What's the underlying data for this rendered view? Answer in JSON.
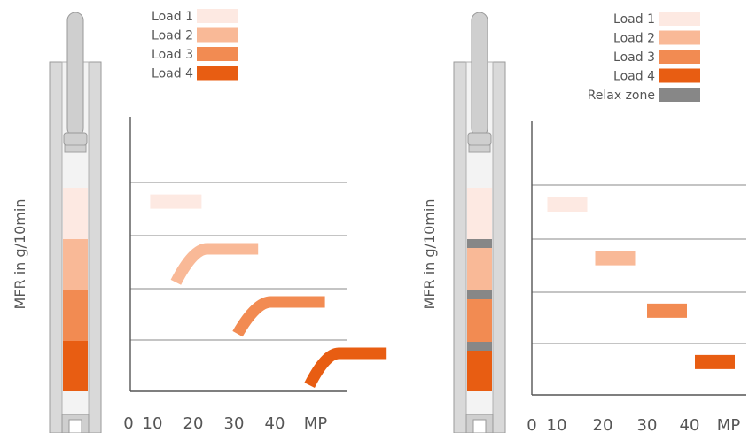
{
  "colors": {
    "load_1": "#fde9e2",
    "load_2": "#f9b997",
    "load_3": "#f28b52",
    "load_4": "#e85d12",
    "relax_zone": "#878787",
    "axis": "#555555",
    "grid": "#8a8a8a",
    "barrel": "#d9d9d9",
    "piston": "#cfcfcf",
    "bore": "#f3f3f3"
  },
  "chart_data": [
    {
      "type": "line",
      "ylabel": "MFR in g/10min",
      "x_ticks": [
        "0",
        "10",
        "20",
        "30",
        "40"
      ],
      "x_unit": "MP",
      "grid": "horizontal",
      "legend_position": "top",
      "legend": [
        "Load 1",
        "Load 2",
        "Load 3",
        "Load 4"
      ],
      "segments": [
        {
          "name": "Load 1",
          "x": [
            3,
            13
          ],
          "band": 1,
          "shape": "flat"
        },
        {
          "name": "Load 2",
          "x": [
            8,
            24
          ],
          "band": 2,
          "shape": "rise-then-flat"
        },
        {
          "name": "Load 3",
          "x": [
            20,
            37
          ],
          "band": 3,
          "shape": "rise-then-flat"
        },
        {
          "name": "Load 4",
          "x": [
            34,
            49
          ],
          "band": 4,
          "shape": "rise-then-flat"
        }
      ],
      "barrel_zones": [
        "Load 1",
        "Load 2",
        "Load 3",
        "Load 4"
      ]
    },
    {
      "type": "line",
      "ylabel": "MFR in g/10min",
      "x_ticks": [
        "0",
        "10",
        "20",
        "30",
        "40"
      ],
      "x_unit": "MP",
      "grid": "horizontal",
      "legend_position": "top",
      "legend": [
        "Load 1",
        "Load 2",
        "Load 3",
        "Load 4",
        "Relax zone"
      ],
      "segments": [
        {
          "name": "Load 1",
          "x": [
            3,
            13
          ],
          "band": 1,
          "shape": "flat"
        },
        {
          "name": "Load 2",
          "x": [
            15,
            25
          ],
          "band": 2,
          "shape": "flat"
        },
        {
          "name": "Load 3",
          "x": [
            28,
            38
          ],
          "band": 3,
          "shape": "flat"
        },
        {
          "name": "Load 4",
          "x": [
            40,
            50
          ],
          "band": 4,
          "shape": "flat"
        }
      ],
      "barrel_zones": [
        "Load 1",
        "Relax zone",
        "Load 2",
        "Relax zone",
        "Load 3",
        "Relax zone",
        "Load 4"
      ]
    }
  ]
}
